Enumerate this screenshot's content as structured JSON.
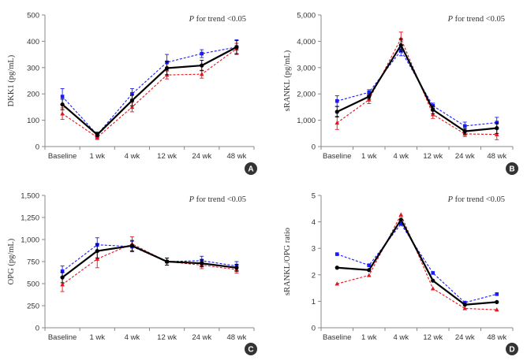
{
  "colors": {
    "black_series": "#000000",
    "blue_series": "#1a1aff",
    "red_series": "#e8141c",
    "axis": "#888888",
    "badge": "#333333"
  },
  "chart_data": [
    {
      "panel": "A",
      "type": "line",
      "title": "",
      "annotation_prefix": "P",
      "annotation_rest": " for trend <0.05",
      "ylabel": "DKK1 (pg/mL)",
      "xlabel": "",
      "categories": [
        "Baseline",
        "1 wk",
        "4 wk",
        "12 wk",
        "24 wk",
        "48 wk"
      ],
      "ylim": [
        0,
        500
      ],
      "yticks": [
        0,
        100,
        200,
        300,
        400,
        500
      ],
      "ytick_labels": [
        "0",
        "100",
        "200",
        "300",
        "400",
        "500"
      ],
      "series": [
        {
          "name": "total",
          "style": "solid-black-circle",
          "values": [
            160,
            45,
            175,
            298,
            308,
            378
          ],
          "err": [
            20,
            8,
            20,
            25,
            20,
            25
          ]
        },
        {
          "name": "blue",
          "style": "dashed-blue-square",
          "values": [
            190,
            45,
            200,
            320,
            353,
            378
          ],
          "err": [
            30,
            10,
            20,
            30,
            15,
            28
          ]
        },
        {
          "name": "red",
          "style": "dashed-red-triangle",
          "values": [
            125,
            35,
            150,
            272,
            275,
            372
          ],
          "err": [
            22,
            8,
            18,
            15,
            15,
            20
          ]
        }
      ]
    },
    {
      "panel": "B",
      "type": "line",
      "title": "",
      "annotation_prefix": "P",
      "annotation_rest": " for trend <0.05",
      "ylabel": "sRANKL (pg/mL)",
      "xlabel": "",
      "categories": [
        "Baseline",
        "1 wk",
        "4 wk",
        "12 wk",
        "24 wk",
        "48 wk"
      ],
      "ylim": [
        0,
        5000
      ],
      "yticks": [
        0,
        1000,
        2000,
        3000,
        4000,
        5000
      ],
      "ytick_labels": [
        "0",
        "1,000",
        "2,000",
        "3,000",
        "4,000",
        "5,000"
      ],
      "series": [
        {
          "name": "total",
          "style": "solid-black-circle",
          "values": [
            1320,
            1900,
            3850,
            1400,
            580,
            700
          ],
          "err": [
            200,
            100,
            250,
            150,
            100,
            200
          ]
        },
        {
          "name": "blue",
          "style": "dashed-blue-square",
          "values": [
            1730,
            2060,
            3650,
            1550,
            780,
            910
          ],
          "err": [
            200,
            100,
            200,
            100,
            150,
            200
          ]
        },
        {
          "name": "red",
          "style": "dashed-red-triangle",
          "values": [
            900,
            1780,
            4100,
            1220,
            480,
            460
          ],
          "err": [
            250,
            150,
            250,
            150,
            100,
            200
          ]
        }
      ]
    },
    {
      "panel": "C",
      "type": "line",
      "title": "",
      "annotation_prefix": "P",
      "annotation_rest": " for trend <0.05",
      "ylabel": "OPG (pg/mL)",
      "xlabel": "",
      "categories": [
        "Baseline",
        "1 wk",
        "4 wk",
        "12 wk",
        "24 wk",
        "48 wk"
      ],
      "ylim": [
        0,
        1500
      ],
      "yticks": [
        0,
        250,
        500,
        750,
        1000,
        1250,
        1500
      ],
      "ytick_labels": [
        "0",
        "250",
        "500",
        "750",
        "1,000",
        "1,250",
        "1,500"
      ],
      "series": [
        {
          "name": "total",
          "style": "solid-black-circle",
          "values": [
            570,
            870,
            930,
            750,
            730,
            680
          ],
          "err": [
            60,
            80,
            60,
            40,
            40,
            40
          ]
        },
        {
          "name": "blue",
          "style": "dashed-blue-square",
          "values": [
            640,
            940,
            920,
            750,
            760,
            700
          ],
          "err": [
            60,
            80,
            60,
            40,
            50,
            50
          ]
        },
        {
          "name": "red",
          "style": "dashed-red-triangle",
          "values": [
            490,
            780,
            950,
            750,
            710,
            660
          ],
          "err": [
            80,
            100,
            80,
            40,
            40,
            40
          ]
        }
      ]
    },
    {
      "panel": "D",
      "type": "line",
      "title": "",
      "annotation_prefix": "P",
      "annotation_rest": " for trend <0.05",
      "ylabel": "sRANKL/OPG ratio",
      "xlabel": "",
      "categories": [
        "Baseline",
        "1 wk",
        "4 wk",
        "12 wk",
        "24 wk",
        "48 wk"
      ],
      "ylim": [
        0,
        5
      ],
      "yticks": [
        0,
        1,
        2,
        3,
        4,
        5
      ],
      "ytick_labels": [
        "0",
        "1",
        "2",
        "3",
        "4",
        "5"
      ],
      "series": [
        {
          "name": "total",
          "style": "solid-black-circle",
          "values": [
            2.27,
            2.18,
            4.08,
            1.78,
            0.87,
            0.97
          ],
          "err": [
            0,
            0,
            0,
            0,
            0,
            0
          ]
        },
        {
          "name": "blue",
          "style": "dashed-blue-square",
          "values": [
            2.78,
            2.36,
            3.92,
            2.07,
            0.95,
            1.27
          ],
          "err": [
            0,
            0,
            0,
            0,
            0,
            0
          ]
        },
        {
          "name": "red",
          "style": "dashed-red-triangle",
          "values": [
            1.66,
            1.98,
            4.27,
            1.48,
            0.73,
            0.68
          ],
          "err": [
            0,
            0,
            0,
            0,
            0,
            0
          ]
        }
      ]
    }
  ]
}
